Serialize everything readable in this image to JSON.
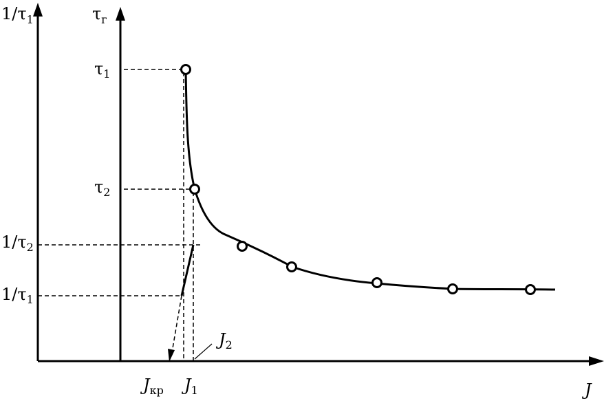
{
  "left_axis": {
    "label_main": "1/τ",
    "label_sub": "1"
  },
  "right_axis": {
    "label_main": "τ",
    "label_sub": "г"
  },
  "x_axis": {
    "label": "J"
  },
  "y_ticks": [
    {
      "main": "τ",
      "sub": "1"
    },
    {
      "main": "τ",
      "sub": "2"
    },
    {
      "main": "1/τ",
      "sub": "2"
    },
    {
      "main": "1/τ",
      "sub": "1"
    }
  ],
  "x_ticks": [
    {
      "main": "J",
      "sub": "кр"
    },
    {
      "main": "J",
      "sub": "1"
    },
    {
      "main": "J",
      "sub": "2"
    }
  ]
}
